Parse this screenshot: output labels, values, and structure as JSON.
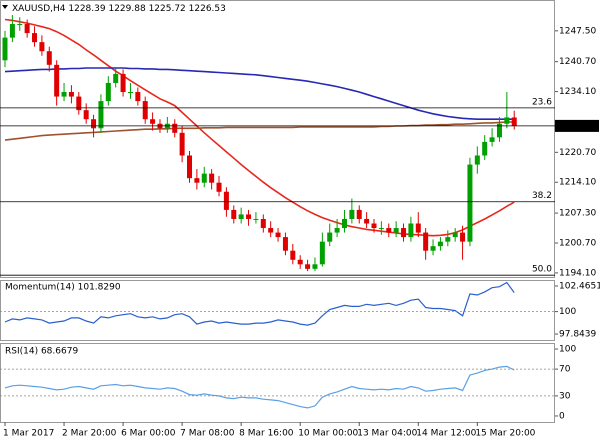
{
  "chart_data": [
    {
      "type": "candlestick",
      "title": "XAUUSD,H4",
      "categories": [
        "1 Mar 2017",
        null,
        null,
        null,
        null,
        null,
        null,
        null,
        "2 Mar 20:00",
        null,
        null,
        null,
        null,
        null,
        null,
        null,
        "6 Mar 00:00",
        null,
        null,
        null,
        null,
        null,
        null,
        null,
        "7 Mar 08:00",
        null,
        null,
        null,
        null,
        null,
        null,
        null,
        "8 Mar 16:00",
        null,
        null,
        null,
        null,
        null,
        null,
        null,
        "10 Mar 00:00",
        null,
        null,
        null,
        null,
        null,
        null,
        null,
        "13 Mar 04:00",
        null,
        null,
        null,
        null,
        null,
        null,
        null,
        "14 Mar 12:00",
        null,
        null,
        null,
        null,
        null,
        null,
        null,
        "15 Mar 20:00",
        null,
        null,
        null,
        null,
        null
      ],
      "open": [
        1241,
        1246,
        1249,
        1249,
        1247,
        1245,
        1243,
        1240,
        1233,
        1234,
        1233,
        1230,
        1228,
        1226,
        1232,
        1236,
        1238,
        1234,
        1234,
        1232,
        1228,
        1227,
        1226,
        1227,
        1225,
        1220,
        1215,
        1214,
        1216,
        1214,
        1212,
        1208,
        1206,
        1207,
        1206,
        1206,
        1204,
        1203,
        1202,
        1199,
        1197,
        1196,
        1195,
        1196,
        1201,
        1203,
        1204,
        1206,
        1208,
        1206,
        1205,
        1204,
        1204,
        1203,
        1204,
        1202,
        1205,
        1203,
        1199,
        1200,
        1201,
        1202,
        1203,
        1201,
        1218,
        1220,
        1223,
        1224,
        1227,
        1228.39
      ],
      "high": [
        1247.5,
        1251,
        1250.5,
        1250,
        1248.5,
        1246.5,
        1244,
        1241,
        1236,
        1235.5,
        1234,
        1231.5,
        1229,
        1233.5,
        1237.5,
        1239.5,
        1239,
        1236,
        1235,
        1233,
        1229.5,
        1228,
        1228.5,
        1228,
        1226.5,
        1221,
        1217,
        1217.5,
        1217,
        1215.5,
        1213,
        1209,
        1208.5,
        1208,
        1207.5,
        1207,
        1205.5,
        1204,
        1203,
        1200.5,
        1198,
        1197,
        1197.5,
        1203,
        1205,
        1206,
        1208,
        1210.5,
        1209,
        1207.5,
        1206,
        1205.5,
        1205,
        1205.5,
        1205,
        1206.5,
        1207.5,
        1204,
        1201.5,
        1202,
        1203.5,
        1204,
        1204.5,
        1219.5,
        1222,
        1224.5,
        1226,
        1228.5,
        1234,
        1229.88
      ],
      "low": [
        1239.5,
        1245,
        1247.5,
        1246,
        1244,
        1242,
        1238.5,
        1231,
        1232,
        1231.5,
        1229,
        1227,
        1224,
        1225,
        1231,
        1235,
        1233,
        1232.5,
        1231,
        1227,
        1225.5,
        1225,
        1225,
        1224,
        1218.5,
        1214,
        1212.5,
        1213,
        1212.5,
        1211,
        1206.5,
        1205,
        1205,
        1204.5,
        1205,
        1203,
        1202,
        1201,
        1198,
        1196,
        1195,
        1194.5,
        1194.5,
        1195.5,
        1200,
        1202,
        1203,
        1205,
        1205,
        1204,
        1203,
        1202.5,
        1202,
        1202,
        1201,
        1201,
        1202,
        1197,
        1198,
        1199,
        1200,
        1201,
        1197,
        1200,
        1216,
        1219,
        1222,
        1223,
        1226,
        1225.72
      ],
      "close": [
        1246,
        1249,
        1249,
        1247,
        1245,
        1243,
        1240,
        1233,
        1234,
        1233,
        1230,
        1228,
        1226,
        1232,
        1236,
        1238,
        1234,
        1234,
        1232,
        1228,
        1227,
        1226,
        1227,
        1225,
        1220,
        1215,
        1214,
        1216,
        1214,
        1212,
        1208,
        1206,
        1207,
        1206,
        1206,
        1204,
        1203,
        1202,
        1199,
        1197,
        1196,
        1195,
        1196,
        1201,
        1203,
        1204,
        1206,
        1208,
        1206,
        1205,
        1204,
        1204,
        1203,
        1204,
        1202,
        1205,
        1203,
        1199,
        1200,
        1201,
        1202,
        1203,
        1201,
        1218,
        1220,
        1223,
        1224,
        1227,
        1228.4,
        1226.53
      ],
      "up_color": "#00a000",
      "down_color": "#e00000",
      "overlays": [
        {
          "color": "#e8281e",
          "values": [
            1250,
            1249.8,
            1249.5,
            1249.2,
            1248.8,
            1248.4,
            1248,
            1247.3,
            1246.5,
            1245.5,
            1244.5,
            1243.3,
            1242.2,
            1241,
            1239.8,
            1238.6,
            1237.6,
            1236.5,
            1235.5,
            1234.5,
            1233.5,
            1232.5,
            1231.8,
            1231,
            1229.5,
            1228,
            1226.5,
            1225,
            1223.6,
            1222.2,
            1220.8,
            1219.4,
            1218,
            1216.7,
            1215.4,
            1214.1,
            1212.9,
            1211.8,
            1210.7,
            1209.7,
            1208.7,
            1207.8,
            1207,
            1206.3,
            1205.7,
            1205.2,
            1204.7,
            1204.3,
            1204,
            1203.7,
            1203.5,
            1203.3,
            1203.1,
            1202.9,
            1202.7,
            1202.6,
            1202.5,
            1202.4,
            1202.3,
            1202.4,
            1202.6,
            1203,
            1203.6,
            1204.4,
            1205.2,
            1206,
            1206.9,
            1207.8,
            1208.8,
            1209.7
          ]
        },
        {
          "color": "#2828b4",
          "values": [
            1238.5,
            1238.6,
            1238.7,
            1238.8,
            1238.9,
            1239,
            1239,
            1239.1,
            1239.1,
            1239.2,
            1239.2,
            1239.3,
            1239.3,
            1239.3,
            1239.3,
            1239.3,
            1239.3,
            1239.2,
            1239.2,
            1239.1,
            1239.1,
            1239,
            1239,
            1238.9,
            1238.8,
            1238.7,
            1238.6,
            1238.5,
            1238.4,
            1238.3,
            1238.2,
            1238.1,
            1238,
            1237.9,
            1237.8,
            1237.6,
            1237.4,
            1237.2,
            1237,
            1236.8,
            1236.6,
            1236.4,
            1236.1,
            1235.8,
            1235.5,
            1235.2,
            1234.8,
            1234.4,
            1234,
            1233.5,
            1233,
            1232.5,
            1232,
            1231.5,
            1231,
            1230.5,
            1230,
            1229.6,
            1229.2,
            1228.9,
            1228.6,
            1228.4,
            1228.2,
            1228.1,
            1228,
            1228,
            1228,
            1228,
            1228,
            1228
          ]
        },
        {
          "color": "#a0522d",
          "values": [
            1223.4,
            1223.6,
            1223.8,
            1224,
            1224.2,
            1224.4,
            1224.5,
            1224.6,
            1224.7,
            1224.8,
            1224.9,
            1225,
            1225.1,
            1225.2,
            1225.3,
            1225.4,
            1225.5,
            1225.6,
            1225.7,
            1225.8,
            1225.8,
            1225.9,
            1225.9,
            1226,
            1226,
            1226,
            1226,
            1226.1,
            1226.1,
            1226.1,
            1226.2,
            1226.2,
            1226.2,
            1226.2,
            1226.2,
            1226.2,
            1226.2,
            1226.2,
            1226.2,
            1226.2,
            1226.3,
            1226.3,
            1226.3,
            1226.3,
            1226.3,
            1226.3,
            1226.3,
            1226.3,
            1226.3,
            1226.3,
            1226.3,
            1226.4,
            1226.4,
            1226.5,
            1226.5,
            1226.6,
            1226.6,
            1226.7,
            1226.7,
            1226.8,
            1226.8,
            1226.9,
            1226.9,
            1227,
            1227.1,
            1227.2,
            1227.2,
            1227.3,
            1227.4,
            1227.4
          ]
        }
      ],
      "levels": [
        {
          "label": "23.6",
          "value": 1230.5
        },
        {
          "label": "38.2",
          "value": 1209.8
        },
        {
          "label": "50.0",
          "value": 1193.6
        }
      ],
      "ylim": [
        1193.2,
        1254.3
      ],
      "yticks": [
        {
          "value": 1247.5,
          "label": "1247.50"
        },
        {
          "value": 1240.7,
          "label": "1240.70"
        },
        {
          "value": 1234.1,
          "label": "1234.10"
        },
        {
          "value": 1220.7,
          "label": "1220.70"
        },
        {
          "value": 1214.1,
          "label": "1214.10"
        },
        {
          "value": 1207.3,
          "label": "1207.30"
        },
        {
          "value": 1200.7,
          "label": "1200.70"
        },
        {
          "value": 1194.1,
          "label": "1194.10"
        }
      ]
    },
    {
      "type": "line",
      "title": "Momentum(14) 101.8290",
      "color": "#2a5fd0",
      "values": [
        99.0,
        99.3,
        99.2,
        99.4,
        99.3,
        99.2,
        98.9,
        99.0,
        99.1,
        99.4,
        99.4,
        99.1,
        98.9,
        99.5,
        99.4,
        99.6,
        99.7,
        99.8,
        99.5,
        99.4,
        99.5,
        99.3,
        99.4,
        99.7,
        99.8,
        99.5,
        98.8,
        99.0,
        99.1,
        98.9,
        99.0,
        98.9,
        98.8,
        98.8,
        98.9,
        98.9,
        99.0,
        99.2,
        99.1,
        99.0,
        98.8,
        98.7,
        98.9,
        99.6,
        100.2,
        100.4,
        100.6,
        100.5,
        100.5,
        100.7,
        100.6,
        100.7,
        100.8,
        100.6,
        100.8,
        101.1,
        101.2,
        100.4,
        100.3,
        100.3,
        100.2,
        100.1,
        99.6,
        101.7,
        101.6,
        101.9,
        102.3,
        102.4,
        102.8,
        101.829
      ],
      "levels": [
        100
      ],
      "ylim": [
        97.27,
        103.04
      ],
      "yticks": [
        102.4651,
        100,
        97.8439
      ]
    },
    {
      "type": "line",
      "title": "RSI(14) 68.6679",
      "color": "#5aa0e6",
      "values": [
        42,
        45,
        46,
        45,
        44,
        43,
        41,
        39,
        40,
        43,
        44,
        42,
        40,
        45,
        46,
        47,
        45,
        46,
        44,
        42,
        41,
        40,
        42,
        41,
        37,
        32,
        31,
        33,
        31,
        30,
        27,
        26,
        28,
        27,
        27,
        25,
        24,
        23,
        20,
        17,
        14,
        12,
        15,
        28,
        33,
        36,
        40,
        44,
        41,
        40,
        39,
        40,
        39,
        41,
        40,
        44,
        42,
        37,
        38,
        40,
        41,
        42,
        38,
        61,
        64,
        68,
        70,
        73,
        74,
        68.6679
      ],
      "levels": [
        70,
        30
      ],
      "ylim": [
        -9,
        109
      ],
      "yticks": [
        100,
        70,
        30,
        0
      ]
    }
  ]
}
